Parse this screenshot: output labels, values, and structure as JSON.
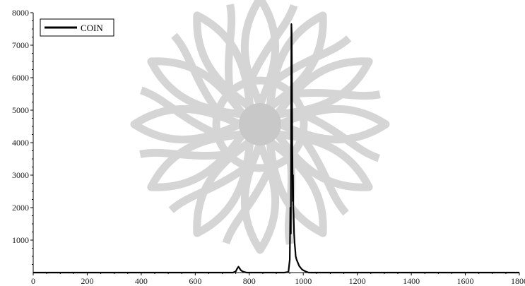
{
  "chart_data": {
    "type": "line",
    "title": "",
    "xlabel": "",
    "ylabel": "",
    "xlim": [
      0,
      1800
    ],
    "ylim": [
      0,
      8000
    ],
    "x_ticks": [
      0,
      200,
      400,
      600,
      800,
      1000,
      1200,
      1400,
      1600,
      1800
    ],
    "x_tick_labels": [
      "0",
      "200",
      "400",
      "600",
      "800",
      "1000",
      "1200",
      "1400",
      "1600",
      "1800"
    ],
    "y_ticks": [
      1000,
      2000,
      3000,
      4000,
      5000,
      6000,
      7000,
      8000
    ],
    "y_tick_labels": [
      "1000",
      "2000",
      "3000",
      "4000",
      "5000",
      "6000",
      "7000",
      "8000"
    ],
    "grid": false,
    "legend": {
      "placement": "top-left",
      "entries": [
        "COIN"
      ]
    },
    "watermark": "decorative-star-rosette",
    "colors": {
      "line": "#000000",
      "watermark": "#c8c8c8"
    },
    "series": [
      {
        "name": "COIN",
        "x": [
          0,
          740,
          750,
          755,
          760,
          765,
          770,
          780,
          790,
          930,
          945,
          950,
          952,
          954,
          956,
          957,
          958,
          959,
          960,
          961,
          962,
          963,
          964,
          966,
          968,
          970,
          972,
          975,
          980,
          985,
          990,
          995,
          1000,
          1010,
          1020,
          1800
        ],
        "y": [
          0,
          0,
          40,
          120,
          180,
          120,
          60,
          20,
          0,
          0,
          20,
          400,
          2000,
          1200,
          7650,
          7400,
          6000,
          4000,
          3500,
          2200,
          3000,
          2000,
          1800,
          1200,
          900,
          700,
          500,
          400,
          300,
          200,
          150,
          100,
          70,
          30,
          0,
          0
        ]
      }
    ]
  }
}
